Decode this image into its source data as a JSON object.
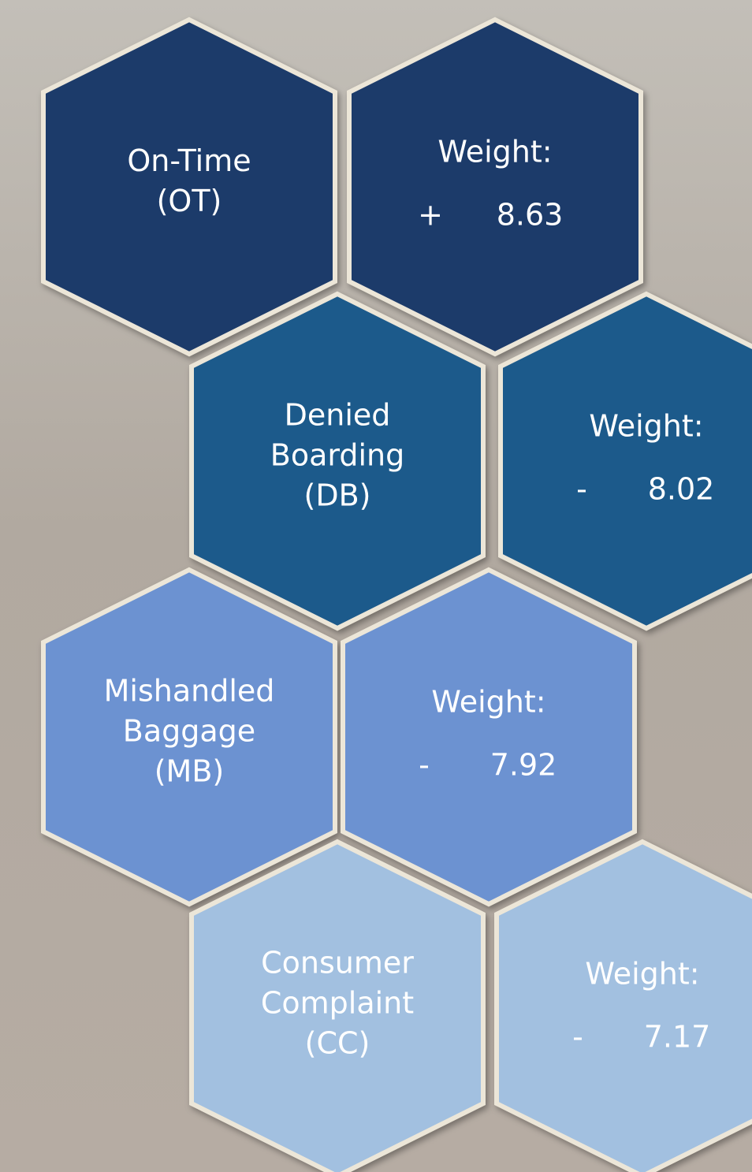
{
  "items": [
    {
      "label": [
        "On-Time",
        "(OT)"
      ],
      "weight": {
        "title": "Weight:",
        "sign": "+",
        "value": 8.63
      }
    },
    {
      "label": [
        "Denied",
        "Boarding",
        "(DB)"
      ],
      "weight": {
        "title": "Weight:",
        "sign": "-",
        "value": 8.02
      }
    },
    {
      "label": [
        "Mishandled",
        "Baggage",
        "(MB)"
      ],
      "weight": {
        "title": "Weight:",
        "sign": "-",
        "value": 7.92
      }
    },
    {
      "label": [
        "Consumer",
        "Complaint",
        "(CC)"
      ],
      "weight": {
        "title": "Weight:",
        "sign": "-",
        "value": 7.17
      }
    }
  ]
}
